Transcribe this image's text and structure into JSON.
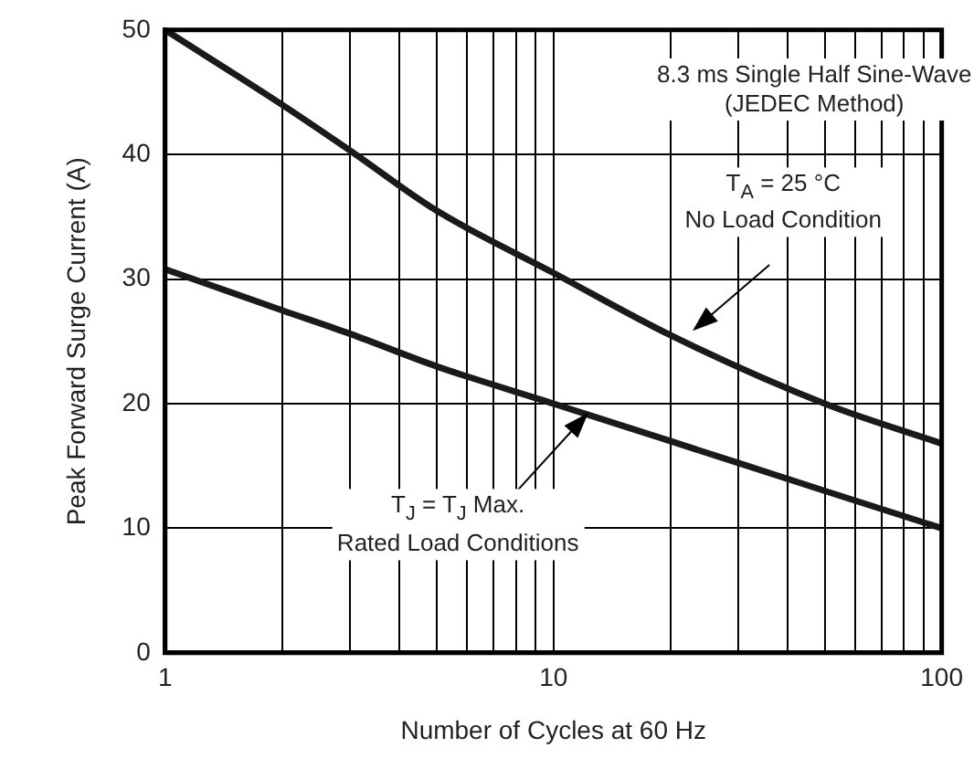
{
  "chart_data": {
    "type": "line",
    "xlabel": "Number of Cycles at 60 Hz",
    "ylabel": "Peak Forward Surge Current (A)",
    "annotations": [
      "8.3 ms Single Half Sine-Wave\n(JEDEC Method)",
      "T$_{A}$ = 25 °C\nNo Load Condition",
      "T$_{J}$ = T$_{J}$ Max.\nRated Load Conditions"
    ],
    "log": "x",
    "grid": true,
    "marker": "none",
    "line_style": "solid",
    "xlim": [
      1,
      100
    ],
    "xticks": [
      1,
      {
        "value": 2,
        "label": null
      },
      {
        "value": 3,
        "label": null
      },
      {
        "value": 4,
        "label": null
      },
      {
        "value": 5,
        "label": null
      },
      {
        "value": 6,
        "label": null
      },
      {
        "value": 7,
        "label": null
      },
      {
        "value": 8,
        "label": null
      },
      {
        "value": 9,
        "label": null
      },
      10,
      {
        "value": 20,
        "label": null
      },
      {
        "value": 30,
        "label": null
      },
      {
        "value": 40,
        "label": null
      },
      {
        "value": 50,
        "label": null
      },
      {
        "value": 60,
        "label": null
      },
      {
        "value": 70,
        "label": null
      },
      {
        "value": 80,
        "label": null
      },
      {
        "value": 90,
        "label": null
      },
      100
    ],
    "ylim": [
      0,
      50
    ],
    "yticks": [
      0,
      10,
      20,
      30,
      40,
      50
    ],
    "x": [
      1,
      2,
      3,
      5,
      10,
      20,
      50,
      100
    ],
    "series": [
      {
        "color": "#1a1a1a",
        "values": [
          50,
          44,
          40.3,
          35.5,
          30.5,
          25.5,
          20,
          16.8
        ]
      },
      {
        "color": "#1a1a1a",
        "values": [
          30.8,
          27.5,
          25.6,
          23,
          20,
          17,
          13,
          10
        ]
      }
    ]
  }
}
